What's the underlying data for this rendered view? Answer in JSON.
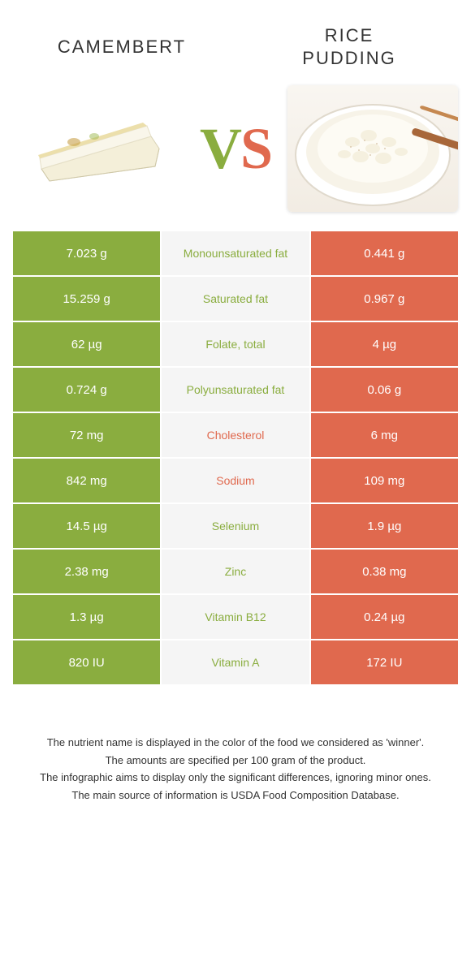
{
  "colors": {
    "left": "#8aad3f",
    "right": "#e0694e",
    "mid_bg": "#f5f5f5",
    "text_dark": "#333333",
    "white": "#ffffff"
  },
  "header": {
    "left_title": "CAMEMBERT",
    "right_title_line1": "RICE",
    "right_title_line2": "PUDDING"
  },
  "vs": {
    "v": "V",
    "s": "S"
  },
  "rows": [
    {
      "left": "7.023 g",
      "label": "Monounsaturated fat",
      "right": "0.441 g",
      "winner": "left"
    },
    {
      "left": "15.259 g",
      "label": "Saturated fat",
      "right": "0.967 g",
      "winner": "left"
    },
    {
      "left": "62 µg",
      "label": "Folate, total",
      "right": "4 µg",
      "winner": "left"
    },
    {
      "left": "0.724 g",
      "label": "Polyunsaturated fat",
      "right": "0.06 g",
      "winner": "left"
    },
    {
      "left": "72 mg",
      "label": "Cholesterol",
      "right": "6 mg",
      "winner": "right"
    },
    {
      "left": "842 mg",
      "label": "Sodium",
      "right": "109 mg",
      "winner": "right"
    },
    {
      "left": "14.5 µg",
      "label": "Selenium",
      "right": "1.9 µg",
      "winner": "left"
    },
    {
      "left": "2.38 mg",
      "label": "Zinc",
      "right": "0.38 mg",
      "winner": "left"
    },
    {
      "left": "1.3 µg",
      "label": "Vitamin B12",
      "right": "0.24 µg",
      "winner": "left"
    },
    {
      "left": "820 IU",
      "label": "Vitamin A",
      "right": "172 IU",
      "winner": "left"
    }
  ],
  "footer": {
    "line1": "The nutrient name is displayed in the color of the food we considered as 'winner'.",
    "line2": "The amounts are specified per 100 gram of the product.",
    "line3": "The infographic aims to display only the significant differences, ignoring minor ones.",
    "line4": "The main source of information is USDA Food Composition Database."
  }
}
